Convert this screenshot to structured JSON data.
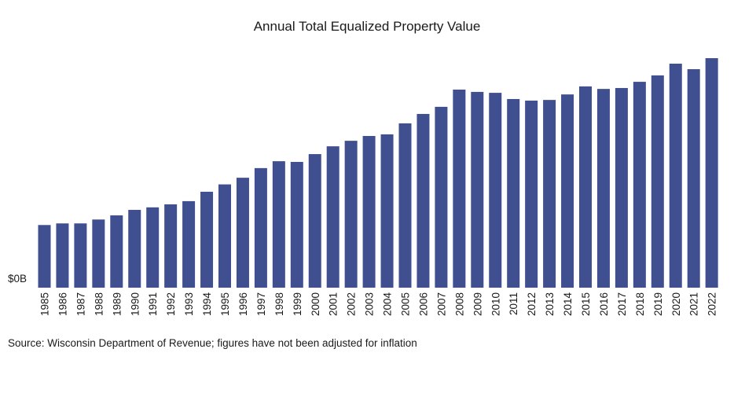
{
  "chart_data": {
    "type": "bar",
    "title": "Annual Total Equalized Property Value",
    "xlabel": "",
    "ylabel": "",
    "y_tick_labels": [
      "$0B"
    ],
    "ylim": [
      0,
      100
    ],
    "color": "#3f4f8f",
    "grid": false,
    "legend": "none",
    "categories": [
      "1985",
      "1986",
      "1987",
      "1988",
      "1989",
      "1990",
      "1991",
      "1992",
      "1993",
      "1994",
      "1995",
      "1996",
      "1997",
      "1998",
      "1999",
      "2000",
      "2001",
      "2002",
      "2003",
      "2004",
      "2005",
      "2006",
      "2007",
      "2008",
      "2009",
      "2010",
      "2011",
      "2012",
      "2013",
      "2014",
      "2015",
      "2016",
      "2017",
      "2018",
      "2019",
      "2020",
      "2021",
      "2022"
    ],
    "values": [
      27.3,
      28.0,
      28.0,
      29.7,
      31.5,
      33.9,
      35.0,
      36.3,
      37.7,
      41.8,
      45.0,
      47.9,
      52.1,
      55.1,
      54.8,
      58.2,
      61.6,
      64.0,
      66.1,
      66.8,
      71.6,
      75.7,
      78.8,
      86.3,
      85.3,
      84.9,
      82.2,
      81.5,
      81.8,
      84.2,
      87.7,
      86.6,
      87.0,
      89.7,
      92.5,
      97.6,
      95.2,
      100.0
    ],
    "source": "Source: Wisconsin Department of Revenue; figures have not been adjusted for inflation"
  }
}
